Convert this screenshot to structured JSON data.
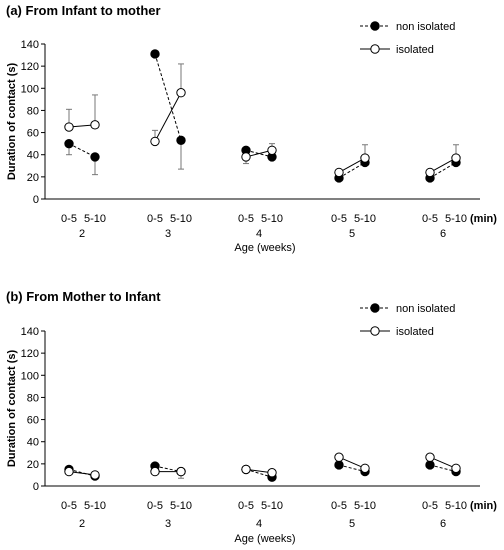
{
  "chart_data": [
    {
      "type": "line",
      "title": "(a) From Infant to mother",
      "ylabel": "Duration of contact (s)",
      "xlabel": "Age (weeks)",
      "x_unit": "(min)",
      "ylim": [
        0,
        140
      ],
      "yticks": [
        0,
        20,
        40,
        60,
        80,
        100,
        120,
        140
      ],
      "legend_position": "top-right",
      "groups": [
        "2",
        "3",
        "4",
        "5",
        "6"
      ],
      "intervals": [
        "0-5",
        "5-10"
      ],
      "series": [
        {
          "name": "non isolated",
          "marker": "filled-circle",
          "line": "dashed",
          "values": [
            [
              50,
              38
            ],
            [
              131,
              53
            ],
            [
              44,
              38
            ],
            [
              19,
              33
            ],
            [
              19,
              33
            ]
          ],
          "error_low": [
            [
              10,
              16
            ],
            [
              0,
              26
            ],
            [
              0,
              0
            ],
            [
              0,
              0
            ],
            [
              0,
              0
            ]
          ],
          "error_high": [
            [
              0,
              0
            ],
            [
              0,
              0
            ],
            [
              0,
              0
            ],
            [
              0,
              0
            ],
            [
              0,
              0
            ]
          ]
        },
        {
          "name": "isolated",
          "marker": "open-circle",
          "line": "solid",
          "values": [
            [
              65,
              67
            ],
            [
              52,
              96
            ],
            [
              38,
              44
            ],
            [
              24,
              37
            ],
            [
              24,
              37
            ]
          ],
          "error_low": [
            [
              0,
              0
            ],
            [
              0,
              0
            ],
            [
              6,
              0
            ],
            [
              0,
              0
            ],
            [
              0,
              0
            ]
          ],
          "error_high": [
            [
              16,
              27
            ],
            [
              10,
              26
            ],
            [
              0,
              6
            ],
            [
              0,
              12
            ],
            [
              0,
              12
            ]
          ]
        }
      ]
    },
    {
      "type": "line",
      "title": "(b) From Mother to Infant",
      "ylabel": "Duration of contact (s)",
      "xlabel": "Age (weeks)",
      "x_unit": "(min)",
      "ylim": [
        0,
        140
      ],
      "yticks": [
        0,
        20,
        40,
        60,
        80,
        100,
        120,
        140
      ],
      "legend_position": "top-right",
      "groups": [
        "2",
        "3",
        "4",
        "5",
        "6"
      ],
      "intervals": [
        "0-5",
        "5-10"
      ],
      "series": [
        {
          "name": "non isolated",
          "marker": "filled-circle",
          "line": "dashed",
          "values": [
            [
              15,
              9
            ],
            [
              18,
              13
            ],
            [
              15,
              8
            ],
            [
              19,
              13
            ],
            [
              19,
              13
            ]
          ],
          "error_low": [
            [
              0,
              0
            ],
            [
              0,
              0
            ],
            [
              0,
              0
            ],
            [
              0,
              0
            ],
            [
              0,
              0
            ]
          ],
          "error_high": [
            [
              0,
              0
            ],
            [
              0,
              0
            ],
            [
              0,
              0
            ],
            [
              0,
              0
            ],
            [
              0,
              0
            ]
          ]
        },
        {
          "name": "isolated",
          "marker": "open-circle",
          "line": "solid",
          "values": [
            [
              13,
              10
            ],
            [
              13,
              13
            ],
            [
              15,
              12
            ],
            [
              26,
              16
            ],
            [
              26,
              16
            ]
          ],
          "error_low": [
            [
              0,
              0
            ],
            [
              0,
              6
            ],
            [
              0,
              0
            ],
            [
              0,
              0
            ],
            [
              0,
              0
            ]
          ],
          "error_high": [
            [
              0,
              0
            ],
            [
              0,
              0
            ],
            [
              0,
              0
            ],
            [
              0,
              0
            ],
            [
              0,
              0
            ]
          ]
        }
      ]
    }
  ]
}
